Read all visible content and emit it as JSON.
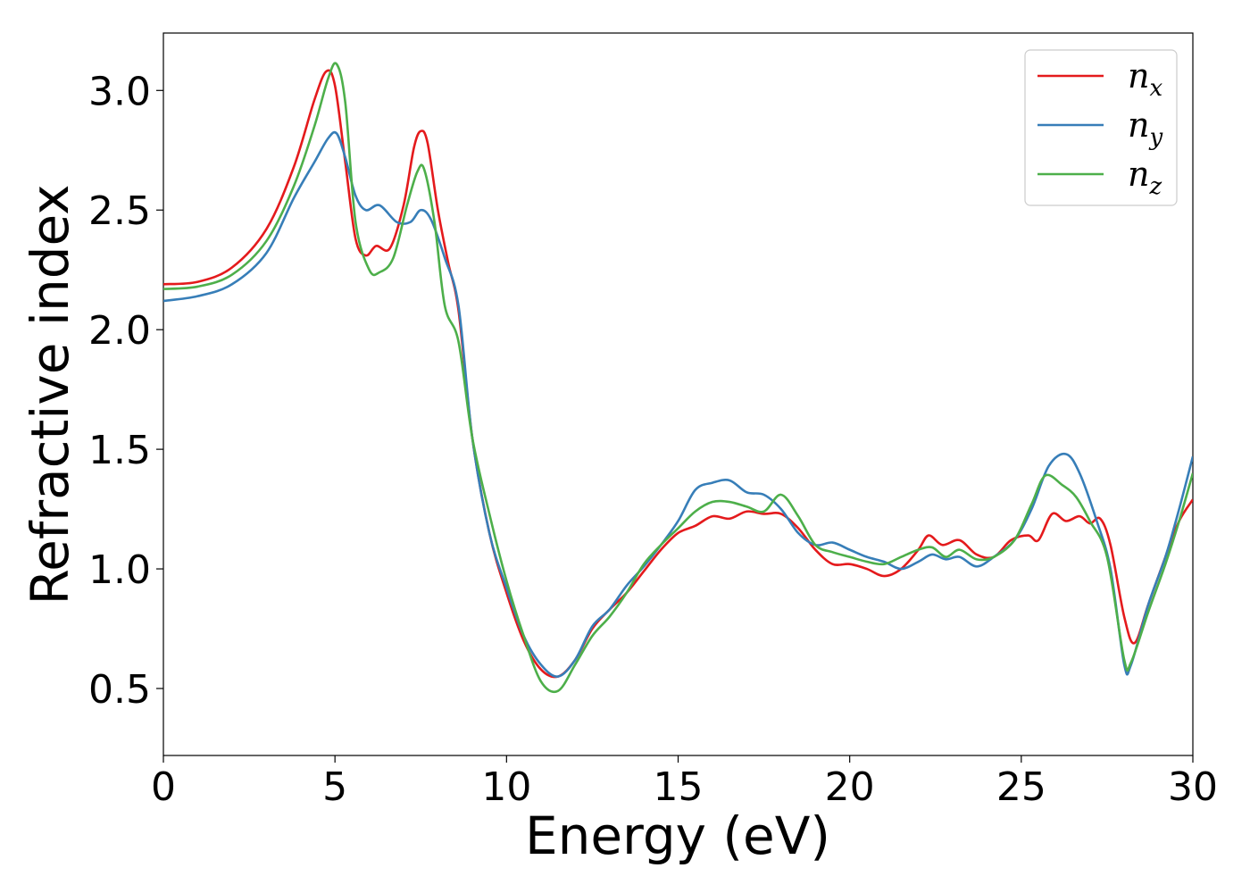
{
  "chart_data": {
    "type": "line",
    "title": "",
    "xlabel": "Energy (eV)",
    "ylabel": "Refractive index",
    "xlim": [
      0,
      30
    ],
    "ylim": [
      0.22,
      3.24
    ],
    "xticks": [
      0,
      5,
      10,
      15,
      20,
      25,
      30
    ],
    "yticks": [
      0.5,
      1.0,
      1.5,
      2.0,
      2.5,
      3.0
    ],
    "xtick_labels": [
      "0",
      "5",
      "10",
      "15",
      "20",
      "25",
      "30"
    ],
    "ytick_labels": [
      "0.5",
      "1.0",
      "1.5",
      "2.0",
      "2.5",
      "3.0"
    ],
    "grid": false,
    "legend_position": "top-right",
    "series": [
      {
        "name": "n",
        "subscript": "x",
        "color": "#e41a1c",
        "points": [
          [
            0,
            2.19
          ],
          [
            1,
            2.2
          ],
          [
            2,
            2.26
          ],
          [
            3,
            2.42
          ],
          [
            3.8,
            2.68
          ],
          [
            4.4,
            2.96
          ],
          [
            4.75,
            3.08
          ],
          [
            5,
            3.02
          ],
          [
            5.3,
            2.7
          ],
          [
            5.6,
            2.38
          ],
          [
            5.9,
            2.31
          ],
          [
            6.2,
            2.35
          ],
          [
            6.6,
            2.34
          ],
          [
            7,
            2.52
          ],
          [
            7.3,
            2.76
          ],
          [
            7.5,
            2.83
          ],
          [
            7.7,
            2.78
          ],
          [
            8,
            2.5
          ],
          [
            8.3,
            2.28
          ],
          [
            8.6,
            2.08
          ],
          [
            9,
            1.55
          ],
          [
            9.5,
            1.15
          ],
          [
            10,
            0.9
          ],
          [
            10.5,
            0.7
          ],
          [
            11,
            0.58
          ],
          [
            11.5,
            0.55
          ],
          [
            12,
            0.62
          ],
          [
            12.5,
            0.75
          ],
          [
            13,
            0.83
          ],
          [
            13.5,
            0.9
          ],
          [
            14,
            0.99
          ],
          [
            14.5,
            1.08
          ],
          [
            15,
            1.15
          ],
          [
            15.5,
            1.18
          ],
          [
            16,
            1.22
          ],
          [
            16.5,
            1.21
          ],
          [
            17,
            1.24
          ],
          [
            17.5,
            1.23
          ],
          [
            18,
            1.23
          ],
          [
            18.5,
            1.17
          ],
          [
            19,
            1.08
          ],
          [
            19.5,
            1.02
          ],
          [
            20,
            1.02
          ],
          [
            20.5,
            1.0
          ],
          [
            21,
            0.97
          ],
          [
            21.5,
            1.0
          ],
          [
            22,
            1.08
          ],
          [
            22.3,
            1.14
          ],
          [
            22.7,
            1.1
          ],
          [
            23.2,
            1.12
          ],
          [
            23.7,
            1.06
          ],
          [
            24.2,
            1.05
          ],
          [
            24.7,
            1.12
          ],
          [
            25.2,
            1.14
          ],
          [
            25.5,
            1.12
          ],
          [
            25.9,
            1.23
          ],
          [
            26.3,
            1.2
          ],
          [
            26.7,
            1.22
          ],
          [
            27,
            1.19
          ],
          [
            27.3,
            1.21
          ],
          [
            27.6,
            1.1
          ],
          [
            28,
            0.8
          ],
          [
            28.3,
            0.69
          ],
          [
            28.7,
            0.85
          ],
          [
            29.2,
            1.05
          ],
          [
            29.6,
            1.2
          ],
          [
            30,
            1.29
          ]
        ]
      },
      {
        "name": "n",
        "subscript": "y",
        "color": "#377eb8",
        "points": [
          [
            0,
            2.12
          ],
          [
            1,
            2.14
          ],
          [
            2,
            2.19
          ],
          [
            3,
            2.32
          ],
          [
            3.8,
            2.55
          ],
          [
            4.4,
            2.7
          ],
          [
            4.8,
            2.8
          ],
          [
            5.05,
            2.82
          ],
          [
            5.3,
            2.72
          ],
          [
            5.6,
            2.56
          ],
          [
            5.9,
            2.5
          ],
          [
            6.3,
            2.52
          ],
          [
            6.8,
            2.45
          ],
          [
            7.2,
            2.45
          ],
          [
            7.5,
            2.5
          ],
          [
            7.8,
            2.46
          ],
          [
            8.2,
            2.3
          ],
          [
            8.6,
            2.1
          ],
          [
            9,
            1.55
          ],
          [
            9.5,
            1.15
          ],
          [
            10,
            0.92
          ],
          [
            10.5,
            0.72
          ],
          [
            11,
            0.6
          ],
          [
            11.5,
            0.55
          ],
          [
            12,
            0.62
          ],
          [
            12.5,
            0.76
          ],
          [
            13,
            0.83
          ],
          [
            13.5,
            0.93
          ],
          [
            14,
            1.01
          ],
          [
            14.5,
            1.1
          ],
          [
            15,
            1.2
          ],
          [
            15.5,
            1.33
          ],
          [
            16,
            1.36
          ],
          [
            16.5,
            1.37
          ],
          [
            17,
            1.32
          ],
          [
            17.5,
            1.31
          ],
          [
            18,
            1.25
          ],
          [
            18.5,
            1.15
          ],
          [
            19,
            1.1
          ],
          [
            19.5,
            1.11
          ],
          [
            20,
            1.08
          ],
          [
            20.5,
            1.05
          ],
          [
            21,
            1.03
          ],
          [
            21.5,
            1.0
          ],
          [
            22,
            1.03
          ],
          [
            22.4,
            1.06
          ],
          [
            22.8,
            1.04
          ],
          [
            23.2,
            1.05
          ],
          [
            23.7,
            1.01
          ],
          [
            24.2,
            1.05
          ],
          [
            24.8,
            1.12
          ],
          [
            25.3,
            1.25
          ],
          [
            25.8,
            1.43
          ],
          [
            26.3,
            1.48
          ],
          [
            26.7,
            1.4
          ],
          [
            27.2,
            1.2
          ],
          [
            27.6,
            1.0
          ],
          [
            28,
            0.6
          ],
          [
            28.2,
            0.6
          ],
          [
            28.7,
            0.85
          ],
          [
            29.2,
            1.05
          ],
          [
            29.6,
            1.25
          ],
          [
            30,
            1.47
          ]
        ]
      },
      {
        "name": "n",
        "subscript": "z",
        "color": "#4daf4a",
        "points": [
          [
            0,
            2.17
          ],
          [
            1,
            2.18
          ],
          [
            2,
            2.23
          ],
          [
            3,
            2.37
          ],
          [
            3.8,
            2.6
          ],
          [
            4.4,
            2.85
          ],
          [
            4.8,
            3.05
          ],
          [
            5.05,
            3.11
          ],
          [
            5.3,
            2.95
          ],
          [
            5.6,
            2.45
          ],
          [
            6,
            2.25
          ],
          [
            6.3,
            2.24
          ],
          [
            6.7,
            2.3
          ],
          [
            7.1,
            2.52
          ],
          [
            7.4,
            2.66
          ],
          [
            7.6,
            2.67
          ],
          [
            7.9,
            2.45
          ],
          [
            8.2,
            2.1
          ],
          [
            8.6,
            1.95
          ],
          [
            9,
            1.55
          ],
          [
            9.5,
            1.23
          ],
          [
            10,
            0.95
          ],
          [
            10.5,
            0.72
          ],
          [
            11,
            0.53
          ],
          [
            11.5,
            0.49
          ],
          [
            12,
            0.6
          ],
          [
            12.5,
            0.72
          ],
          [
            13,
            0.8
          ],
          [
            13.5,
            0.9
          ],
          [
            14,
            1.02
          ],
          [
            14.5,
            1.1
          ],
          [
            15,
            1.17
          ],
          [
            15.5,
            1.24
          ],
          [
            16,
            1.28
          ],
          [
            16.5,
            1.28
          ],
          [
            17,
            1.26
          ],
          [
            17.5,
            1.24
          ],
          [
            18,
            1.31
          ],
          [
            18.5,
            1.22
          ],
          [
            19,
            1.1
          ],
          [
            19.5,
            1.07
          ],
          [
            20,
            1.05
          ],
          [
            20.5,
            1.03
          ],
          [
            21,
            1.02
          ],
          [
            21.5,
            1.05
          ],
          [
            22,
            1.08
          ],
          [
            22.4,
            1.09
          ],
          [
            22.8,
            1.05
          ],
          [
            23.2,
            1.08
          ],
          [
            23.7,
            1.04
          ],
          [
            24.2,
            1.05
          ],
          [
            24.8,
            1.12
          ],
          [
            25.3,
            1.27
          ],
          [
            25.7,
            1.39
          ],
          [
            26.2,
            1.35
          ],
          [
            26.6,
            1.3
          ],
          [
            27,
            1.2
          ],
          [
            27.5,
            1.05
          ],
          [
            28,
            0.62
          ],
          [
            28.2,
            0.61
          ],
          [
            28.7,
            0.82
          ],
          [
            29.2,
            1.02
          ],
          [
            29.6,
            1.2
          ],
          [
            30,
            1.4
          ]
        ]
      }
    ]
  }
}
